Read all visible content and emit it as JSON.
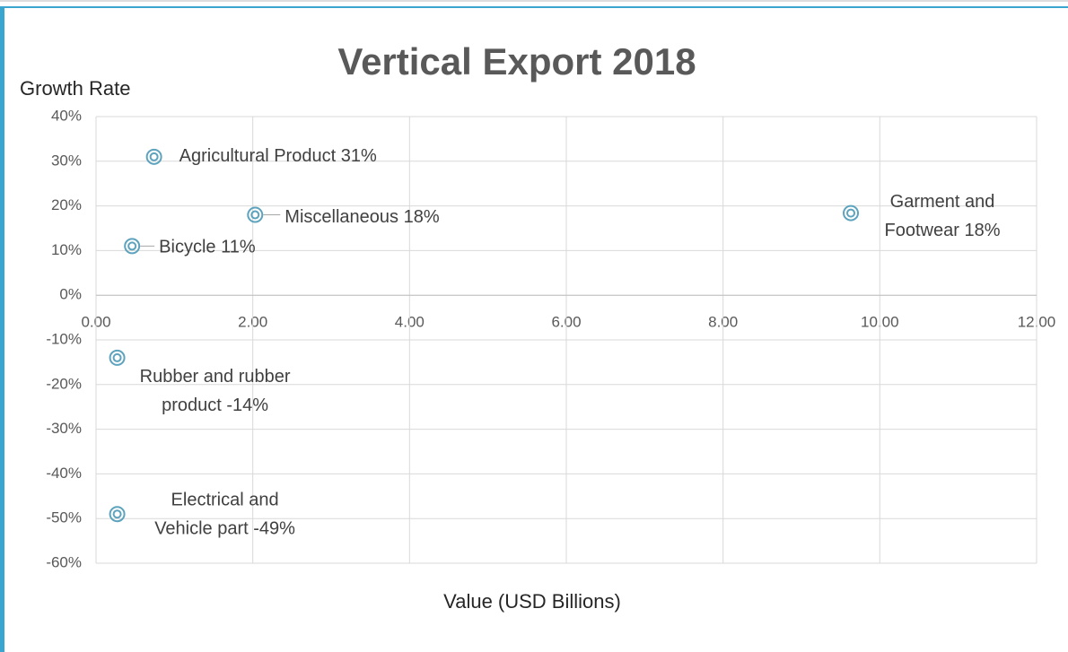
{
  "chart_data": {
    "type": "scatter",
    "title": "Vertical Export 2018",
    "y_label": "Growth Rate",
    "x_label": "Value (USD Billions)",
    "xlim": [
      0,
      12
    ],
    "xticks": [
      {
        "value": 0,
        "label": "0.00"
      },
      {
        "value": 2,
        "label": "2.00"
      },
      {
        "value": 4,
        "label": "4.00"
      },
      {
        "value": 6,
        "label": "6.00"
      },
      {
        "value": 8,
        "label": "8.00"
      },
      {
        "value": 10,
        "label": "10.00"
      },
      {
        "value": 12,
        "label": "12.00"
      }
    ],
    "ylim": [
      -60,
      40
    ],
    "yticks": [
      {
        "value": -60,
        "label": "-60%"
      },
      {
        "value": -50,
        "label": "-50%"
      },
      {
        "value": -40,
        "label": "-40%"
      },
      {
        "value": -30,
        "label": "-30%"
      },
      {
        "value": -20,
        "label": "-20%"
      },
      {
        "value": -10,
        "label": "-10%"
      },
      {
        "value": 0,
        "label": "0%"
      },
      {
        "value": 10,
        "label": "10%"
      },
      {
        "value": 20,
        "label": "20%"
      },
      {
        "value": 30,
        "label": "30%"
      },
      {
        "value": 40,
        "label": "40%"
      }
    ],
    "grid": true,
    "series": [
      {
        "color": "#5ea3bd",
        "x": [
          0.74,
          2.03,
          0.46,
          9.63,
          0.27,
          0.27
        ],
        "values": [
          31,
          18,
          11,
          18.4,
          -14,
          -49
        ],
        "value_labels": [
          [
            "Agricultural Product 31%"
          ],
          [
            "Miscellaneous 18%"
          ],
          [
            "Bicycle 11%"
          ],
          [
            "Garment and",
            "Footwear 18%"
          ],
          [
            "Rubber and rubber",
            "product -14%"
          ],
          [
            "Electrical and",
            "Vehicle part -49%"
          ]
        ]
      }
    ]
  }
}
